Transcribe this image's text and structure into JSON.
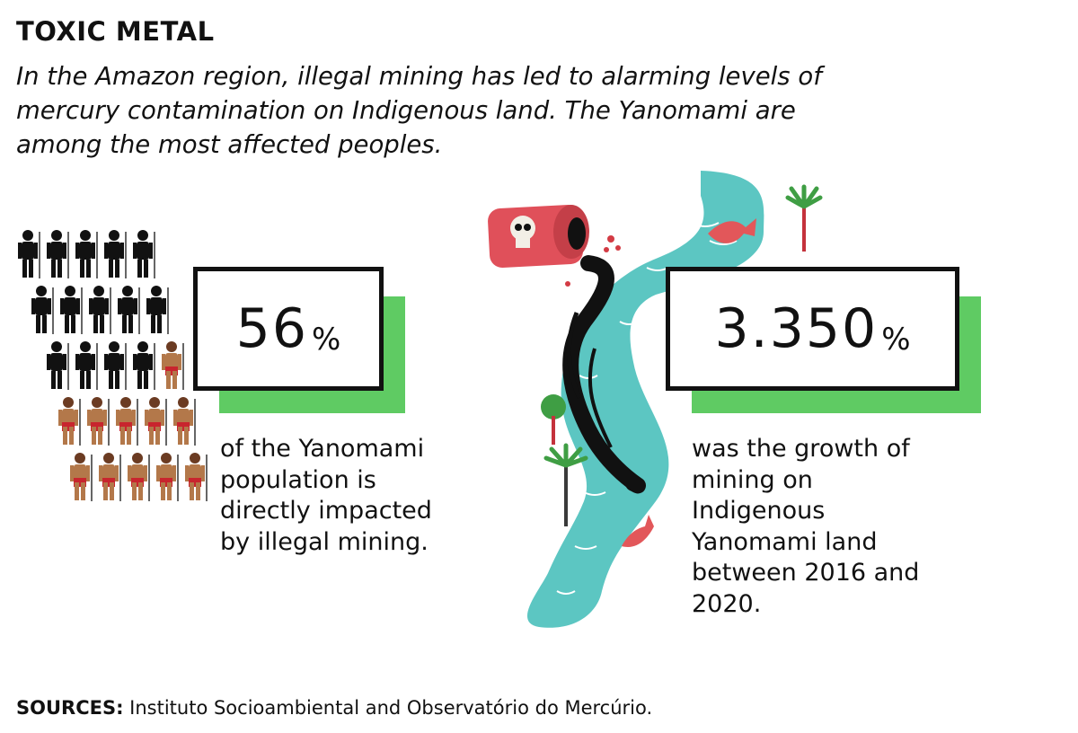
{
  "title": "TOXIC METAL",
  "subtitle": "In the Amazon region, illegal mining has led to alarming levels of mercury contamination on Indigenous land. The Yanomami are among the most affected peoples.",
  "stats": {
    "population": {
      "value": "56",
      "unit": "%",
      "description": "of the Yanomami population is directly impacted by illegal mining.",
      "impacted_share": 0.56
    },
    "mining": {
      "value": "3.350",
      "unit": "%",
      "description": "was the growth of mining on Indigenous Yanomami land between 2016 and 2020."
    }
  },
  "sources": {
    "label": "SOURCES:",
    "text": " Instituto Socioambiental and Observatório do Mercúrio."
  },
  "colors": {
    "accent_green": "#5fcb63",
    "river": "#5cc6c2",
    "barrel": "#e0505a",
    "fish": "#e2575a",
    "impacted_figure": "#111111",
    "unaffected_figure": "#b3784a"
  },
  "icons": [
    "person-icon",
    "mercury-barrel-icon",
    "skull-icon",
    "river-icon",
    "fish-icon",
    "palm-tree-icon",
    "tree-icon"
  ]
}
